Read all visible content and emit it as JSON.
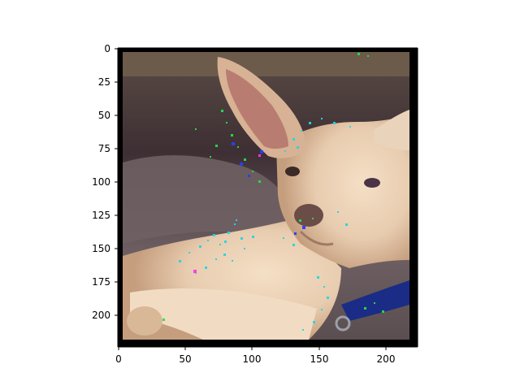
{
  "figure": {
    "type": "image-with-axes",
    "x_ticks": [
      "0",
      "50",
      "100",
      "150",
      "200"
    ],
    "y_ticks": [
      "0",
      "25",
      "50",
      "75",
      "100",
      "125",
      "150",
      "175",
      "200"
    ],
    "x_range": [
      0,
      224
    ],
    "y_range": [
      0,
      224
    ],
    "image_content": "chihuahua-lying-on-blanket-with-saliency-overlay"
  },
  "colors": {
    "background": "#ffffff",
    "frame": "#000000",
    "blanket_dark": "#4a3b3c",
    "blanket_mid": "#6e5f60",
    "dog_fur": "#ecd3b8",
    "dog_shadow": "#c9a27f",
    "ear_inner": "#c98a7a",
    "collar": "#1a2c86",
    "overlay_cyan": "#23d6e6",
    "overlay_green": "#24e04a",
    "overlay_blue": "#2a3dff",
    "overlay_magenta": "#ff38e8"
  }
}
